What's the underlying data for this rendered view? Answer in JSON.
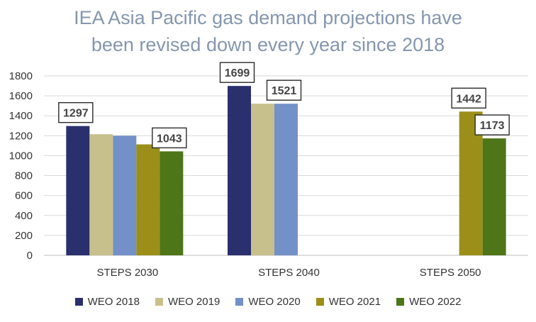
{
  "chart_data": {
    "type": "bar",
    "title_line1": "IEA Asia Pacific gas demand projections have",
    "title_line2": "been revised down every year since 2018",
    "categories": [
      "STEPS 2030",
      "STEPS 2040",
      "STEPS 2050"
    ],
    "series": [
      {
        "name": "WEO 2018",
        "color": "#2a2f6e",
        "values": [
          1297,
          1699,
          null
        ]
      },
      {
        "name": "WEO 2019",
        "color": "#c8c08c",
        "values": [
          1215,
          1521,
          null
        ]
      },
      {
        "name": "WEO 2020",
        "color": "#7391c8",
        "values": [
          1200,
          1521,
          null
        ]
      },
      {
        "name": "WEO 2021",
        "color": "#9b8f1a",
        "values": [
          1113,
          null,
          1442
        ]
      },
      {
        "name": "WEO 2022",
        "color": "#4e7518",
        "values": [
          1043,
          null,
          1173
        ]
      }
    ],
    "data_labels": [
      {
        "category": 0,
        "series": 0,
        "text": "1297"
      },
      {
        "category": 0,
        "series": 4,
        "text": "1043"
      },
      {
        "category": 1,
        "series": 0,
        "text": "1699"
      },
      {
        "category": 1,
        "series": 2,
        "text": "1521"
      },
      {
        "category": 2,
        "series": 3,
        "text": "1442"
      },
      {
        "category": 2,
        "series": 4,
        "text": "1173"
      }
    ],
    "yticks": [
      0,
      200,
      400,
      600,
      800,
      1000,
      1200,
      1400,
      1600,
      1800
    ],
    "ylim": [
      0,
      1800
    ],
    "grid": true,
    "legend_position": "bottom"
  }
}
